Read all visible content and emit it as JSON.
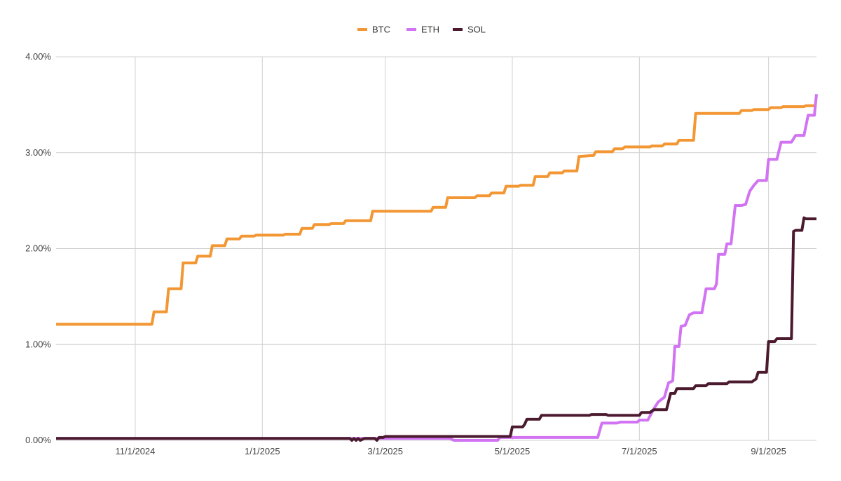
{
  "chart_data": {
    "type": "line",
    "title": "",
    "xlabel": "",
    "ylabel": "",
    "x_range": [
      "2024-09-24",
      "2025-09-24"
    ],
    "ylim": [
      0,
      4
    ],
    "x_ticks": [
      {
        "date": "2024-11-01",
        "label": "11/1/2024"
      },
      {
        "date": "2025-01-01",
        "label": "1/1/2025"
      },
      {
        "date": "2025-03-01",
        "label": "3/1/2025"
      },
      {
        "date": "2025-05-01",
        "label": "5/1/2025"
      },
      {
        "date": "2025-07-01",
        "label": "7/1/2025"
      },
      {
        "date": "2025-09-01",
        "label": "9/1/2025"
      }
    ],
    "y_ticks": [
      {
        "value": 0,
        "label": "0.00%"
      },
      {
        "value": 1,
        "label": "1.00%"
      },
      {
        "value": 2,
        "label": "2.00%"
      },
      {
        "value": 3,
        "label": "3.00%"
      },
      {
        "value": 4,
        "label": "4.00%"
      }
    ],
    "grid": true,
    "legend_position": "top-center",
    "series": [
      {
        "name": "BTC",
        "color": "#f29733",
        "points": [
          [
            "2024-09-24",
            1.21
          ],
          [
            "2024-11-09",
            1.21
          ],
          [
            "2024-11-10",
            1.34
          ],
          [
            "2024-11-16",
            1.34
          ],
          [
            "2024-11-17",
            1.58
          ],
          [
            "2024-11-23",
            1.58
          ],
          [
            "2024-11-24",
            1.85
          ],
          [
            "2024-11-30",
            1.85
          ],
          [
            "2024-12-01",
            1.92
          ],
          [
            "2024-12-07",
            1.92
          ],
          [
            "2024-12-08",
            2.03
          ],
          [
            "2024-12-14",
            2.03
          ],
          [
            "2024-12-15",
            2.1
          ],
          [
            "2024-12-21",
            2.1
          ],
          [
            "2024-12-22",
            2.13
          ],
          [
            "2024-12-28",
            2.13
          ],
          [
            "2024-12-29",
            2.14
          ],
          [
            "2025-01-11",
            2.14
          ],
          [
            "2025-01-12",
            2.15
          ],
          [
            "2025-01-19",
            2.15
          ],
          [
            "2025-01-20",
            2.21
          ],
          [
            "2025-01-25",
            2.21
          ],
          [
            "2025-01-26",
            2.25
          ],
          [
            "2025-02-02",
            2.25
          ],
          [
            "2025-02-03",
            2.26
          ],
          [
            "2025-02-09",
            2.26
          ],
          [
            "2025-02-10",
            2.29
          ],
          [
            "2025-02-22",
            2.29
          ],
          [
            "2025-02-23",
            2.39
          ],
          [
            "2025-03-23",
            2.39
          ],
          [
            "2025-03-24",
            2.43
          ],
          [
            "2025-03-30",
            2.43
          ],
          [
            "2025-03-31",
            2.53
          ],
          [
            "2025-04-13",
            2.53
          ],
          [
            "2025-04-14",
            2.55
          ],
          [
            "2025-04-20",
            2.55
          ],
          [
            "2025-04-21",
            2.58
          ],
          [
            "2025-04-27",
            2.58
          ],
          [
            "2025-04-28",
            2.65
          ],
          [
            "2025-05-04",
            2.65
          ],
          [
            "2025-05-05",
            2.66
          ],
          [
            "2025-05-11",
            2.66
          ],
          [
            "2025-05-12",
            2.75
          ],
          [
            "2025-05-18",
            2.75
          ],
          [
            "2025-05-19",
            2.79
          ],
          [
            "2025-05-25",
            2.79
          ],
          [
            "2025-05-26",
            2.81
          ],
          [
            "2025-06-01",
            2.81
          ],
          [
            "2025-06-02",
            2.96
          ],
          [
            "2025-06-08",
            2.97
          ],
          [
            "2025-06-09",
            2.97
          ],
          [
            "2025-06-10",
            3.01
          ],
          [
            "2025-06-18",
            3.01
          ],
          [
            "2025-06-19",
            3.04
          ],
          [
            "2025-06-23",
            3.04
          ],
          [
            "2025-06-24",
            3.06
          ],
          [
            "2025-07-06",
            3.06
          ],
          [
            "2025-07-07",
            3.07
          ],
          [
            "2025-07-12",
            3.07
          ],
          [
            "2025-07-13",
            3.09
          ],
          [
            "2025-07-19",
            3.09
          ],
          [
            "2025-07-20",
            3.13
          ],
          [
            "2025-07-27",
            3.13
          ],
          [
            "2025-07-28",
            3.41
          ],
          [
            "2025-08-18",
            3.41
          ],
          [
            "2025-08-19",
            3.44
          ],
          [
            "2025-08-24",
            3.44
          ],
          [
            "2025-08-25",
            3.45
          ],
          [
            "2025-09-01",
            3.45
          ],
          [
            "2025-09-02",
            3.47
          ],
          [
            "2025-09-07",
            3.47
          ],
          [
            "2025-09-08",
            3.48
          ],
          [
            "2025-09-18",
            3.48
          ],
          [
            "2025-09-19",
            3.49
          ],
          [
            "2025-09-24",
            3.49
          ]
        ]
      },
      {
        "name": "ETH",
        "color": "#d173f2",
        "points": [
          [
            "2024-09-24",
            0.02
          ],
          [
            "2025-04-01",
            0.02
          ],
          [
            "2025-04-03",
            0.0
          ],
          [
            "2025-04-24",
            0.0
          ],
          [
            "2025-04-25",
            0.03
          ],
          [
            "2025-06-11",
            0.03
          ],
          [
            "2025-06-13",
            0.18
          ],
          [
            "2025-06-20",
            0.18
          ],
          [
            "2025-06-22",
            0.19
          ],
          [
            "2025-06-30",
            0.19
          ],
          [
            "2025-07-01",
            0.21
          ],
          [
            "2025-07-05",
            0.21
          ],
          [
            "2025-07-08",
            0.33
          ],
          [
            "2025-07-10",
            0.4
          ],
          [
            "2025-07-13",
            0.45
          ],
          [
            "2025-07-15",
            0.6
          ],
          [
            "2025-07-17",
            0.62
          ],
          [
            "2025-07-18",
            0.98
          ],
          [
            "2025-07-20",
            0.98
          ],
          [
            "2025-07-21",
            1.19
          ],
          [
            "2025-07-23",
            1.2
          ],
          [
            "2025-07-25",
            1.31
          ],
          [
            "2025-07-27",
            1.33
          ],
          [
            "2025-07-31",
            1.33
          ],
          [
            "2025-08-02",
            1.58
          ],
          [
            "2025-08-06",
            1.58
          ],
          [
            "2025-08-07",
            1.63
          ],
          [
            "2025-08-08",
            1.94
          ],
          [
            "2025-08-11",
            1.94
          ],
          [
            "2025-08-12",
            2.05
          ],
          [
            "2025-08-14",
            2.05
          ],
          [
            "2025-08-16",
            2.45
          ],
          [
            "2025-08-19",
            2.45
          ],
          [
            "2025-08-21",
            2.46
          ],
          [
            "2025-08-23",
            2.6
          ],
          [
            "2025-08-25",
            2.66
          ],
          [
            "2025-08-27",
            2.71
          ],
          [
            "2025-08-31",
            2.71
          ],
          [
            "2025-09-01",
            2.93
          ],
          [
            "2025-09-05",
            2.93
          ],
          [
            "2025-09-07",
            3.11
          ],
          [
            "2025-09-12",
            3.11
          ],
          [
            "2025-09-14",
            3.18
          ],
          [
            "2025-09-18",
            3.18
          ],
          [
            "2025-09-20",
            3.39
          ],
          [
            "2025-09-23",
            3.39
          ],
          [
            "2025-09-24",
            3.61
          ]
        ]
      },
      {
        "name": "SOL",
        "color": "#4b1a2e",
        "points": [
          [
            "2024-09-24",
            0.02
          ],
          [
            "2025-02-12",
            0.02
          ],
          [
            "2025-02-13",
            0.0
          ],
          [
            "2025-02-14",
            0.02
          ],
          [
            "2025-02-15",
            0.0
          ],
          [
            "2025-02-16",
            0.02
          ],
          [
            "2025-02-17",
            0.0
          ],
          [
            "2025-02-19",
            0.02
          ],
          [
            "2025-02-24",
            0.02
          ],
          [
            "2025-02-25",
            0.0
          ],
          [
            "2025-02-26",
            0.03
          ],
          [
            "2025-02-28",
            0.03
          ],
          [
            "2025-03-01",
            0.04
          ],
          [
            "2025-04-30",
            0.04
          ],
          [
            "2025-05-01",
            0.14
          ],
          [
            "2025-05-06",
            0.14
          ],
          [
            "2025-05-07",
            0.17
          ],
          [
            "2025-05-08",
            0.22
          ],
          [
            "2025-05-14",
            0.22
          ],
          [
            "2025-05-15",
            0.26
          ],
          [
            "2025-06-07",
            0.26
          ],
          [
            "2025-06-08",
            0.27
          ],
          [
            "2025-06-15",
            0.27
          ],
          [
            "2025-06-16",
            0.26
          ],
          [
            "2025-07-01",
            0.26
          ],
          [
            "2025-07-02",
            0.29
          ],
          [
            "2025-07-06",
            0.29
          ],
          [
            "2025-07-08",
            0.32
          ],
          [
            "2025-07-14",
            0.32
          ],
          [
            "2025-07-16",
            0.49
          ],
          [
            "2025-07-18",
            0.49
          ],
          [
            "2025-07-19",
            0.54
          ],
          [
            "2025-07-27",
            0.54
          ],
          [
            "2025-07-28",
            0.57
          ],
          [
            "2025-08-02",
            0.57
          ],
          [
            "2025-08-03",
            0.59
          ],
          [
            "2025-08-12",
            0.59
          ],
          [
            "2025-08-13",
            0.61
          ],
          [
            "2025-08-24",
            0.61
          ],
          [
            "2025-08-26",
            0.64
          ],
          [
            "2025-08-27",
            0.71
          ],
          [
            "2025-08-31",
            0.71
          ],
          [
            "2025-09-01",
            1.03
          ],
          [
            "2025-09-04",
            1.03
          ],
          [
            "2025-09-05",
            1.06
          ],
          [
            "2025-09-12",
            1.06
          ],
          [
            "2025-09-13",
            2.18
          ],
          [
            "2025-09-14",
            2.19
          ],
          [
            "2025-09-17",
            2.19
          ],
          [
            "2025-09-18",
            2.32
          ],
          [
            "2025-09-19",
            2.31
          ],
          [
            "2025-09-24",
            2.31
          ]
        ]
      }
    ]
  }
}
